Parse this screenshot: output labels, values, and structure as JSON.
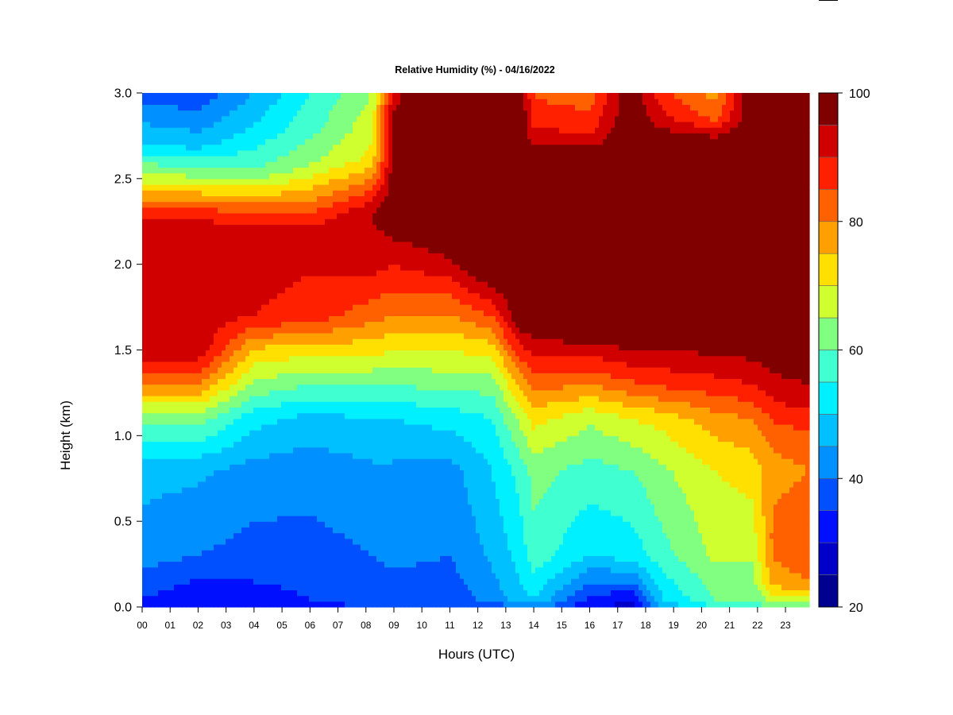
{
  "chart_data": {
    "type": "heatmap",
    "title": "Relative Humidity (%) - 04/16/2022",
    "xlabel": "Hours (UTC)",
    "ylabel": "Height (km)",
    "xlim": [
      0,
      23.85
    ],
    "ylim": [
      0.0,
      3.0
    ],
    "x_ticks": [
      0,
      1,
      2,
      3,
      4,
      5,
      6,
      7,
      8,
      9,
      10,
      11,
      12,
      13,
      14,
      15,
      16,
      17,
      18,
      19,
      20,
      21,
      22,
      23
    ],
    "x_tick_labels": [
      "00",
      "01",
      "02",
      "03",
      "04",
      "05",
      "06",
      "07",
      "08",
      "09",
      "10",
      "11",
      "12",
      "13",
      "14",
      "15",
      "16",
      "17",
      "18",
      "19",
      "20",
      "21",
      "22",
      "23"
    ],
    "y_ticks": [
      0.0,
      0.5,
      1.0,
      1.5,
      2.0,
      2.5,
      3.0
    ],
    "y_tick_labels": [
      "0.0",
      "0.5",
      "1.0",
      "1.5",
      "2.0",
      "2.5",
      "3.0"
    ],
    "colorbar": {
      "range": [
        20,
        100
      ],
      "ticks": [
        20,
        40,
        60,
        80,
        100
      ],
      "tick_labels": [
        "20",
        "40",
        "60",
        "80",
        "100"
      ],
      "levels": [
        20,
        25,
        30,
        35,
        40,
        45,
        50,
        55,
        60,
        65,
        70,
        75,
        80,
        85,
        90,
        95,
        100
      ],
      "colors": [
        "#000090",
        "#0000c8",
        "#0010ff",
        "#0050ff",
        "#0090ff",
        "#00c0ff",
        "#00f0ff",
        "#40ffd0",
        "#80ff80",
        "#d0ff30",
        "#ffe000",
        "#ffa000",
        "#ff6000",
        "#ff2000",
        "#d00000",
        "#800000"
      ]
    },
    "profiles": [
      {
        "t": 0.0,
        "rh": [
          {
            "h": 0.0,
            "v": 32
          },
          {
            "h": 0.05,
            "v": 35
          },
          {
            "h": 0.3,
            "v": 42
          },
          {
            "h": 0.8,
            "v": 47
          },
          {
            "h": 1.1,
            "v": 62
          },
          {
            "h": 1.3,
            "v": 80
          },
          {
            "h": 1.5,
            "v": 95
          },
          {
            "h": 2.2,
            "v": 93
          },
          {
            "h": 2.3,
            "v": 88
          },
          {
            "h": 2.5,
            "v": 68
          },
          {
            "h": 2.7,
            "v": 50
          },
          {
            "h": 3.0,
            "v": 38
          }
        ]
      },
      {
        "t": 2.0,
        "rh": [
          {
            "h": 0.0,
            "v": 30
          },
          {
            "h": 0.05,
            "v": 31
          },
          {
            "h": 0.3,
            "v": 40
          },
          {
            "h": 0.8,
            "v": 46
          },
          {
            "h": 1.1,
            "v": 62
          },
          {
            "h": 1.3,
            "v": 80
          },
          {
            "h": 1.5,
            "v": 94
          },
          {
            "h": 2.2,
            "v": 93
          },
          {
            "h": 2.3,
            "v": 88
          },
          {
            "h": 2.5,
            "v": 66
          },
          {
            "h": 2.7,
            "v": 48
          },
          {
            "h": 3.0,
            "v": 36
          }
        ]
      },
      {
        "t": 4.0,
        "rh": [
          {
            "h": 0.0,
            "v": 31
          },
          {
            "h": 0.05,
            "v": 33
          },
          {
            "h": 0.3,
            "v": 38
          },
          {
            "h": 0.8,
            "v": 43
          },
          {
            "h": 1.1,
            "v": 52
          },
          {
            "h": 1.3,
            "v": 64
          },
          {
            "h": 1.5,
            "v": 74
          },
          {
            "h": 1.7,
            "v": 90
          },
          {
            "h": 2.2,
            "v": 93
          },
          {
            "h": 2.35,
            "v": 80
          },
          {
            "h": 2.55,
            "v": 60
          },
          {
            "h": 2.75,
            "v": 52
          },
          {
            "h": 3.0,
            "v": 45
          }
        ]
      },
      {
        "t": 6.0,
        "rh": [
          {
            "h": 0.0,
            "v": 33
          },
          {
            "h": 0.05,
            "v": 35
          },
          {
            "h": 0.3,
            "v": 38
          },
          {
            "h": 0.8,
            "v": 42
          },
          {
            "h": 1.1,
            "v": 48
          },
          {
            "h": 1.3,
            "v": 60
          },
          {
            "h": 1.5,
            "v": 72
          },
          {
            "h": 1.7,
            "v": 88
          },
          {
            "h": 2.2,
            "v": 92
          },
          {
            "h": 2.4,
            "v": 78
          },
          {
            "h": 2.6,
            "v": 64
          },
          {
            "h": 2.8,
            "v": 58
          },
          {
            "h": 3.0,
            "v": 55
          }
        ]
      },
      {
        "t": 8.2,
        "rh": [
          {
            "h": 0.0,
            "v": 35
          },
          {
            "h": 0.05,
            "v": 38
          },
          {
            "h": 0.3,
            "v": 40
          },
          {
            "h": 0.8,
            "v": 44
          },
          {
            "h": 1.1,
            "v": 50
          },
          {
            "h": 1.3,
            "v": 60
          },
          {
            "h": 1.5,
            "v": 72
          },
          {
            "h": 1.7,
            "v": 82
          },
          {
            "h": 2.0,
            "v": 92
          },
          {
            "h": 2.3,
            "v": 95
          },
          {
            "h": 2.6,
            "v": 72
          },
          {
            "h": 2.8,
            "v": 68
          },
          {
            "h": 3.0,
            "v": 65
          }
        ]
      },
      {
        "t": 9.0,
        "rh": [
          {
            "h": 0.0,
            "v": 36
          },
          {
            "h": 0.05,
            "v": 38
          },
          {
            "h": 0.3,
            "v": 41
          },
          {
            "h": 0.8,
            "v": 44
          },
          {
            "h": 1.1,
            "v": 50
          },
          {
            "h": 1.3,
            "v": 60
          },
          {
            "h": 1.5,
            "v": 70
          },
          {
            "h": 1.7,
            "v": 80
          },
          {
            "h": 2.0,
            "v": 90
          },
          {
            "h": 2.3,
            "v": 100
          },
          {
            "h": 3.0,
            "v": 94
          }
        ]
      },
      {
        "t": 11.0,
        "rh": [
          {
            "h": 0.0,
            "v": 34
          },
          {
            "h": 0.05,
            "v": 37
          },
          {
            "h": 0.3,
            "v": 40
          },
          {
            "h": 0.8,
            "v": 43
          },
          {
            "h": 1.1,
            "v": 52
          },
          {
            "h": 1.3,
            "v": 62
          },
          {
            "h": 1.5,
            "v": 70
          },
          {
            "h": 1.8,
            "v": 84
          },
          {
            "h": 2.0,
            "v": 94
          },
          {
            "h": 2.2,
            "v": 100
          },
          {
            "h": 3.0,
            "v": 100
          }
        ]
      },
      {
        "t": 12.5,
        "rh": [
          {
            "h": 0.0,
            "v": 36
          },
          {
            "h": 0.05,
            "v": 42
          },
          {
            "h": 0.3,
            "v": 46
          },
          {
            "h": 0.8,
            "v": 50
          },
          {
            "h": 1.1,
            "v": 55
          },
          {
            "h": 1.3,
            "v": 62
          },
          {
            "h": 1.5,
            "v": 72
          },
          {
            "h": 1.75,
            "v": 88
          },
          {
            "h": 1.95,
            "v": 100
          },
          {
            "h": 3.0,
            "v": 100
          }
        ]
      },
      {
        "t": 13.5,
        "rh": [
          {
            "h": 0.0,
            "v": 40
          },
          {
            "h": 0.05,
            "v": 48
          },
          {
            "h": 0.3,
            "v": 52
          },
          {
            "h": 0.8,
            "v": 57
          },
          {
            "h": 1.1,
            "v": 66
          },
          {
            "h": 1.3,
            "v": 76
          },
          {
            "h": 1.5,
            "v": 88
          },
          {
            "h": 1.7,
            "v": 100
          },
          {
            "h": 3.0,
            "v": 100
          }
        ]
      },
      {
        "t": 14.0,
        "rh": [
          {
            "h": 0.0,
            "v": 42
          },
          {
            "h": 0.05,
            "v": 50
          },
          {
            "h": 0.3,
            "v": 58
          },
          {
            "h": 0.8,
            "v": 62
          },
          {
            "h": 1.1,
            "v": 72
          },
          {
            "h": 1.3,
            "v": 82
          },
          {
            "h": 1.5,
            "v": 92
          },
          {
            "h": 1.7,
            "v": 100
          },
          {
            "h": 2.6,
            "v": 100
          },
          {
            "h": 2.8,
            "v": 90
          },
          {
            "h": 3.0,
            "v": 84
          }
        ]
      },
      {
        "t": 16.0,
        "rh": [
          {
            "h": 0.0,
            "v": 30
          },
          {
            "h": 0.05,
            "v": 34
          },
          {
            "h": 0.3,
            "v": 50
          },
          {
            "h": 0.8,
            "v": 58
          },
          {
            "h": 1.1,
            "v": 66
          },
          {
            "h": 1.3,
            "v": 80
          },
          {
            "h": 1.5,
            "v": 92
          },
          {
            "h": 1.6,
            "v": 100
          },
          {
            "h": 2.6,
            "v": 100
          },
          {
            "h": 2.8,
            "v": 88
          },
          {
            "h": 3.0,
            "v": 82
          }
        ]
      },
      {
        "t": 17.5,
        "rh": [
          {
            "h": 0.0,
            "v": 28
          },
          {
            "h": 0.05,
            "v": 31
          },
          {
            "h": 0.15,
            "v": 40
          },
          {
            "h": 0.3,
            "v": 52
          },
          {
            "h": 0.8,
            "v": 60
          },
          {
            "h": 1.1,
            "v": 70
          },
          {
            "h": 1.3,
            "v": 84
          },
          {
            "h": 1.5,
            "v": 95
          },
          {
            "h": 1.6,
            "v": 100
          },
          {
            "h": 3.0,
            "v": 100
          }
        ]
      },
      {
        "t": 18.6,
        "rh": [
          {
            "h": 0.0,
            "v": 45
          },
          {
            "h": 0.05,
            "v": 50
          },
          {
            "h": 0.3,
            "v": 58
          },
          {
            "h": 0.8,
            "v": 64
          },
          {
            "h": 1.1,
            "v": 72
          },
          {
            "h": 1.3,
            "v": 86
          },
          {
            "h": 1.5,
            "v": 95
          },
          {
            "h": 1.6,
            "v": 100
          },
          {
            "h": 2.7,
            "v": 100
          },
          {
            "h": 2.85,
            "v": 92
          },
          {
            "h": 3.0,
            "v": 86
          }
        ]
      },
      {
        "t": 20.5,
        "rh": [
          {
            "h": 0.0,
            "v": 55
          },
          {
            "h": 0.05,
            "v": 60
          },
          {
            "h": 0.3,
            "v": 66
          },
          {
            "h": 0.8,
            "v": 70
          },
          {
            "h": 1.1,
            "v": 78
          },
          {
            "h": 1.3,
            "v": 88
          },
          {
            "h": 1.5,
            "v": 96
          },
          {
            "h": 1.6,
            "v": 100
          },
          {
            "h": 2.7,
            "v": 100
          },
          {
            "h": 2.85,
            "v": 84
          },
          {
            "h": 3.0,
            "v": 78
          }
        ]
      },
      {
        "t": 21.8,
        "rh": [
          {
            "h": 0.0,
            "v": 56
          },
          {
            "h": 0.05,
            "v": 60
          },
          {
            "h": 0.3,
            "v": 66
          },
          {
            "h": 0.8,
            "v": 72
          },
          {
            "h": 1.1,
            "v": 80
          },
          {
            "h": 1.3,
            "v": 90
          },
          {
            "h": 1.5,
            "v": 97
          },
          {
            "h": 1.6,
            "v": 100
          },
          {
            "h": 3.0,
            "v": 100
          }
        ]
      },
      {
        "t": 22.6,
        "rh": [
          {
            "h": 0.0,
            "v": 60
          },
          {
            "h": 0.05,
            "v": 68
          },
          {
            "h": 0.15,
            "v": 78
          },
          {
            "h": 0.4,
            "v": 82
          },
          {
            "h": 0.8,
            "v": 78
          },
          {
            "h": 1.0,
            "v": 82
          },
          {
            "h": 1.2,
            "v": 90
          },
          {
            "h": 1.4,
            "v": 96
          },
          {
            "h": 1.5,
            "v": 100
          },
          {
            "h": 3.0,
            "v": 100
          }
        ]
      },
      {
        "t": 23.85,
        "rh": [
          {
            "h": 0.0,
            "v": 62
          },
          {
            "h": 0.05,
            "v": 70
          },
          {
            "h": 0.15,
            "v": 80
          },
          {
            "h": 0.4,
            "v": 84
          },
          {
            "h": 0.8,
            "v": 80
          },
          {
            "h": 1.0,
            "v": 84
          },
          {
            "h": 1.2,
            "v": 92
          },
          {
            "h": 1.4,
            "v": 98
          },
          {
            "h": 1.5,
            "v": 100
          },
          {
            "h": 3.0,
            "v": 100
          }
        ]
      }
    ]
  }
}
